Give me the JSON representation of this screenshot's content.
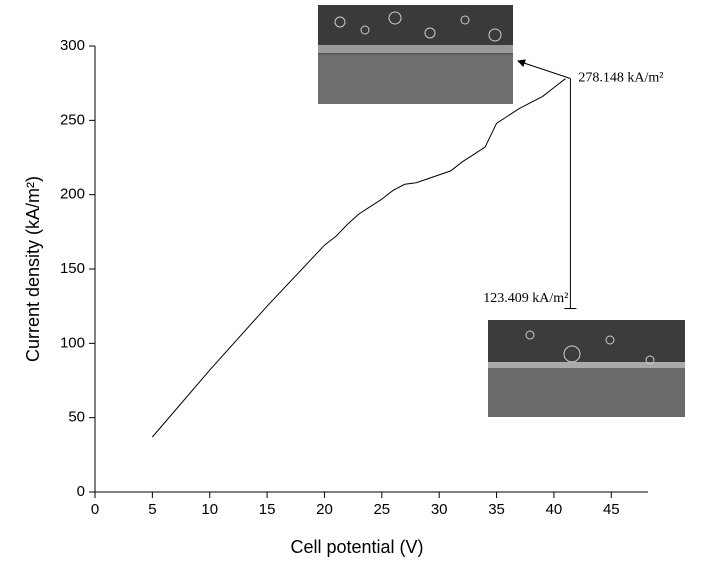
{
  "chart_data": {
    "type": "line",
    "x_label": "Cell potential (V)",
    "y_label": "Current density (kA/m²)",
    "x": [
      5,
      10,
      15,
      20,
      21,
      22,
      23,
      24,
      25,
      26,
      27,
      28,
      31,
      32,
      33,
      34,
      35,
      36,
      37,
      38,
      39,
      40,
      41
    ],
    "series": [
      {
        "color": "#000000",
        "values": [
          37,
          82,
          125,
          166,
          172,
          180,
          187,
          192,
          197,
          203,
          207,
          208,
          216,
          222,
          227,
          232,
          248,
          253,
          258,
          262,
          266,
          272,
          278
        ]
      }
    ],
    "xlim": [
      0,
      48.2
    ],
    "ylim": [
      0,
      300
    ],
    "xticks": [
      0,
      5,
      10,
      15,
      20,
      25,
      30,
      35,
      40,
      45
    ],
    "yticks": [
      0,
      50,
      100,
      150,
      200,
      250,
      300
    ],
    "annotations": [
      {
        "text": "278.148 kA/m²",
        "x": 41,
        "value": 278.148
      },
      {
        "text": "123.409 kA/m²",
        "x": 41,
        "value": 123.409
      }
    ]
  }
}
